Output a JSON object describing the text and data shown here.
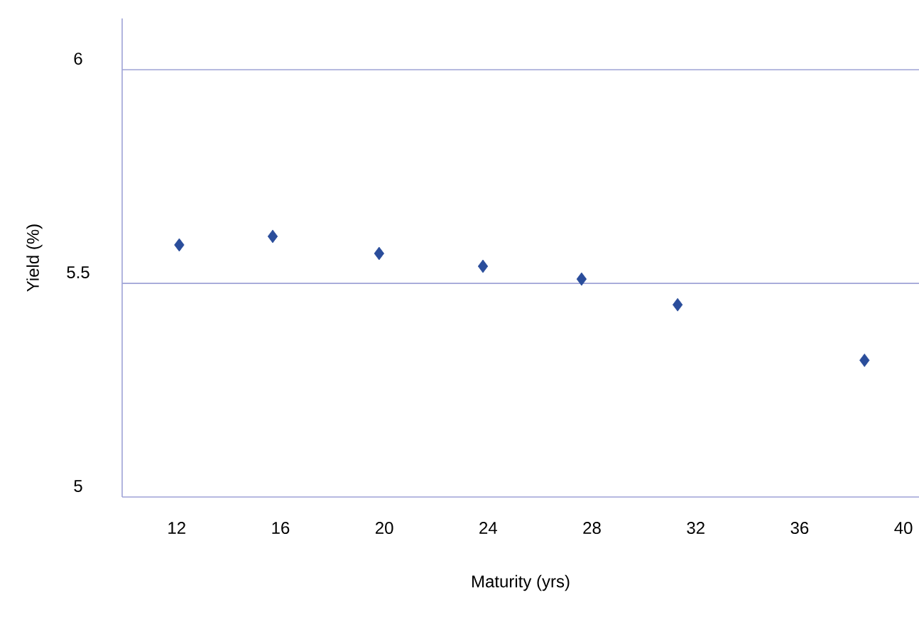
{
  "chart_data": {
    "type": "scatter",
    "xlabel": "Maturity   (yrs)",
    "ylabel": "Yield   (%)",
    "x": [
      12.1,
      15.7,
      19.8,
      23.8,
      27.6,
      31.3,
      38.5
    ],
    "values": [
      5.59,
      5.61,
      5.57,
      5.54,
      5.51,
      5.45,
      5.32
    ],
    "color": "#2a4d9b",
    "marker": "diamond",
    "xlim": [
      9.9,
      40.6
    ],
    "ylim": [
      5,
      6.12
    ],
    "xticks": [
      12,
      16,
      20,
      24,
      28,
      32,
      36,
      40
    ],
    "yticks": [
      5,
      5.5,
      6
    ],
    "grid": "y"
  }
}
